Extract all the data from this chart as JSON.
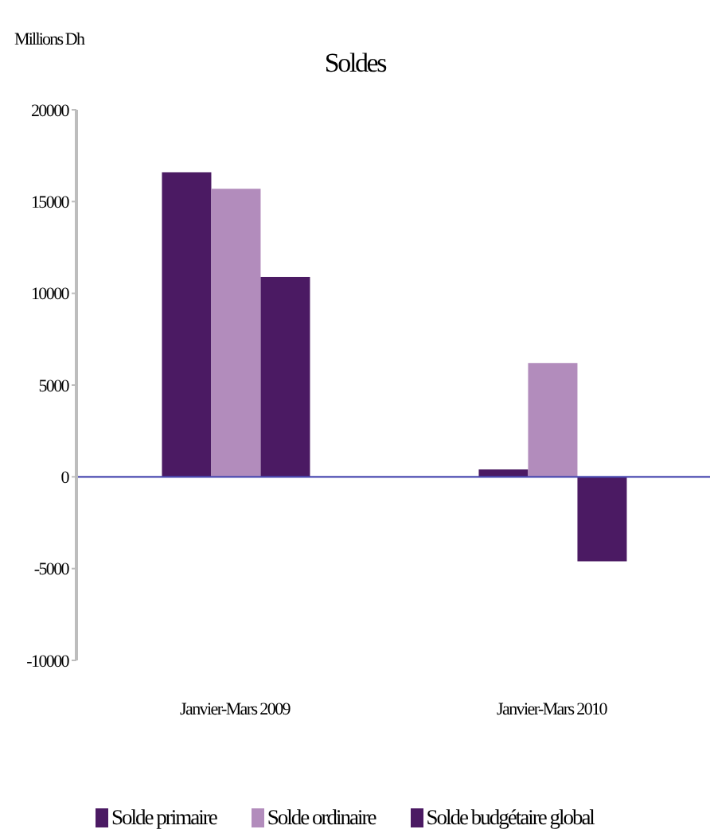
{
  "chart_data": {
    "type": "bar",
    "title": "Soldes",
    "ylabel": "Millions Dh",
    "categories": [
      "Janvier-Mars 2009",
      "Janvier-Mars 2010"
    ],
    "series": [
      {
        "name": "Solde primaire",
        "color": "#4b1a63",
        "values": [
          16600,
          400
        ]
      },
      {
        "name": "Solde ordinaire",
        "color": "#b28cbc",
        "values": [
          15700,
          6200
        ]
      },
      {
        "name": "Solde budgétaire global",
        "color": "#4b1a63",
        "values": [
          10900,
          -4600
        ]
      }
    ],
    "ylim": [
      -10000,
      20000
    ],
    "yticks": [
      -10000,
      -5000,
      0,
      5000,
      10000,
      15000,
      20000
    ],
    "ref_lines": [
      {
        "axis": "y",
        "value": 0,
        "color": "#4a4ab0"
      }
    ],
    "legend": "bottom"
  }
}
